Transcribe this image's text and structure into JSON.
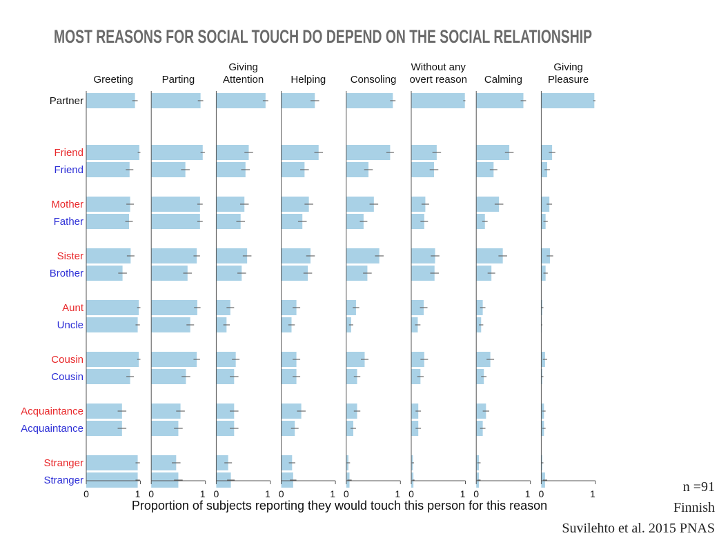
{
  "chart_data": {
    "type": "bar",
    "orientation": "horizontal",
    "title": "MOST REASONS FOR SOCIAL TOUCH DO DEPEND ON THE SOCIAL RELATIONSHIP",
    "xlabel": "Proportion of subjects reporting they would touch this person for this reason",
    "xlim": [
      0,
      1
    ],
    "xtick_labels": [
      "0",
      "1"
    ],
    "grid": false,
    "bar_color": "#a9d1e6",
    "error_color": "#666666",
    "label_colors": {
      "black": "#111111",
      "red": "#e8292b",
      "blue": "#2d2fd6"
    },
    "panels": [
      {
        "title": [
          "Greeting"
        ]
      },
      {
        "title": [
          "Parting"
        ]
      },
      {
        "title": [
          "Giving",
          "Attention"
        ]
      },
      {
        "title": [
          "Helping"
        ]
      },
      {
        "title": [
          "Consoling"
        ]
      },
      {
        "title": [
          "Without any",
          "overt reason"
        ]
      },
      {
        "title": [
          "Calming"
        ]
      },
      {
        "title": [
          "Giving",
          "Pleasure"
        ]
      }
    ],
    "rows": [
      {
        "label": "Partner",
        "color": "black",
        "group": 0,
        "values": [
          0.9,
          0.91,
          0.91,
          0.62,
          0.86,
          0.99,
          0.87,
          0.98
        ],
        "errors": [
          0.05,
          0.05,
          0.05,
          0.08,
          0.05,
          0.03,
          0.05,
          0.02
        ]
      },
      {
        "label": "Friend",
        "color": "red",
        "group": 1,
        "values": [
          0.98,
          0.95,
          0.6,
          0.69,
          0.81,
          0.47,
          0.61,
          0.2
        ],
        "errors": [
          0.03,
          0.04,
          0.08,
          0.08,
          0.07,
          0.08,
          0.08,
          0.06
        ]
      },
      {
        "label": "Friend",
        "color": "blue",
        "group": 1,
        "values": [
          0.8,
          0.63,
          0.54,
          0.43,
          0.41,
          0.42,
          0.32,
          0.11
        ],
        "errors": [
          0.07,
          0.08,
          0.08,
          0.08,
          0.08,
          0.08,
          0.07,
          0.05
        ]
      },
      {
        "label": "Mother",
        "color": "red",
        "group": 2,
        "values": [
          0.81,
          0.9,
          0.52,
          0.51,
          0.51,
          0.26,
          0.42,
          0.15
        ],
        "errors": [
          0.07,
          0.05,
          0.08,
          0.08,
          0.08,
          0.07,
          0.08,
          0.05
        ]
      },
      {
        "label": "Father",
        "color": "blue",
        "group": 2,
        "values": [
          0.79,
          0.9,
          0.45,
          0.39,
          0.32,
          0.24,
          0.16,
          0.08
        ],
        "errors": [
          0.07,
          0.05,
          0.08,
          0.08,
          0.07,
          0.07,
          0.05,
          0.04
        ]
      },
      {
        "label": "Sister",
        "color": "red",
        "group": 3,
        "values": [
          0.82,
          0.84,
          0.57,
          0.54,
          0.61,
          0.44,
          0.49,
          0.16
        ],
        "errors": [
          0.07,
          0.06,
          0.08,
          0.08,
          0.08,
          0.08,
          0.08,
          0.06
        ]
      },
      {
        "label": "Brother",
        "color": "blue",
        "group": 3,
        "values": [
          0.67,
          0.67,
          0.47,
          0.49,
          0.39,
          0.43,
          0.28,
          0.08
        ],
        "errors": [
          0.08,
          0.08,
          0.08,
          0.08,
          0.08,
          0.08,
          0.07,
          0.04
        ]
      },
      {
        "label": "Aunt",
        "color": "red",
        "group": 4,
        "values": [
          0.97,
          0.85,
          0.26,
          0.28,
          0.18,
          0.23,
          0.12,
          0.02
        ],
        "errors": [
          0.03,
          0.06,
          0.07,
          0.07,
          0.06,
          0.07,
          0.05,
          0.02
        ]
      },
      {
        "label": "Uncle",
        "color": "blue",
        "group": 4,
        "values": [
          0.95,
          0.72,
          0.19,
          0.19,
          0.09,
          0.12,
          0.09,
          0.01
        ],
        "errors": [
          0.04,
          0.07,
          0.06,
          0.06,
          0.04,
          0.05,
          0.04,
          0.01
        ]
      },
      {
        "label": "Cousin",
        "color": "red",
        "group": 5,
        "values": [
          0.97,
          0.84,
          0.36,
          0.28,
          0.34,
          0.24,
          0.26,
          0.07
        ],
        "errors": [
          0.03,
          0.06,
          0.07,
          0.07,
          0.07,
          0.07,
          0.07,
          0.04
        ]
      },
      {
        "label": "Cousin",
        "color": "blue",
        "group": 5,
        "values": [
          0.81,
          0.64,
          0.33,
          0.28,
          0.2,
          0.17,
          0.14,
          0.02
        ],
        "errors": [
          0.07,
          0.08,
          0.08,
          0.07,
          0.06,
          0.06,
          0.05,
          0.02
        ]
      },
      {
        "label": "Acquaintance",
        "color": "red",
        "group": 6,
        "values": [
          0.66,
          0.54,
          0.33,
          0.37,
          0.2,
          0.13,
          0.18,
          0.05
        ],
        "errors": [
          0.08,
          0.08,
          0.08,
          0.08,
          0.06,
          0.05,
          0.06,
          0.03
        ]
      },
      {
        "label": "Acquaintance",
        "color": "blue",
        "group": 6,
        "values": [
          0.66,
          0.5,
          0.33,
          0.25,
          0.13,
          0.13,
          0.12,
          0.05
        ],
        "errors": [
          0.08,
          0.08,
          0.08,
          0.07,
          0.05,
          0.05,
          0.05,
          0.03
        ]
      },
      {
        "label": "Stranger",
        "color": "red",
        "group": 7,
        "values": [
          0.95,
          0.46,
          0.22,
          0.2,
          0.04,
          0.03,
          0.05,
          0.02
        ],
        "errors": [
          0.04,
          0.08,
          0.07,
          0.06,
          0.03,
          0.02,
          0.03,
          0.02
        ]
      },
      {
        "label": "Stranger",
        "color": "blue",
        "group": 7,
        "values": [
          0.95,
          0.5,
          0.27,
          0.22,
          0.06,
          0.04,
          0.05,
          0.07
        ],
        "errors": [
          0.04,
          0.08,
          0.07,
          0.06,
          0.04,
          0.02,
          0.03,
          0.04
        ]
      }
    ],
    "annotations": [
      "n =91",
      "Finnish",
      "Suvilehto et al. 2015 PNAS"
    ]
  }
}
